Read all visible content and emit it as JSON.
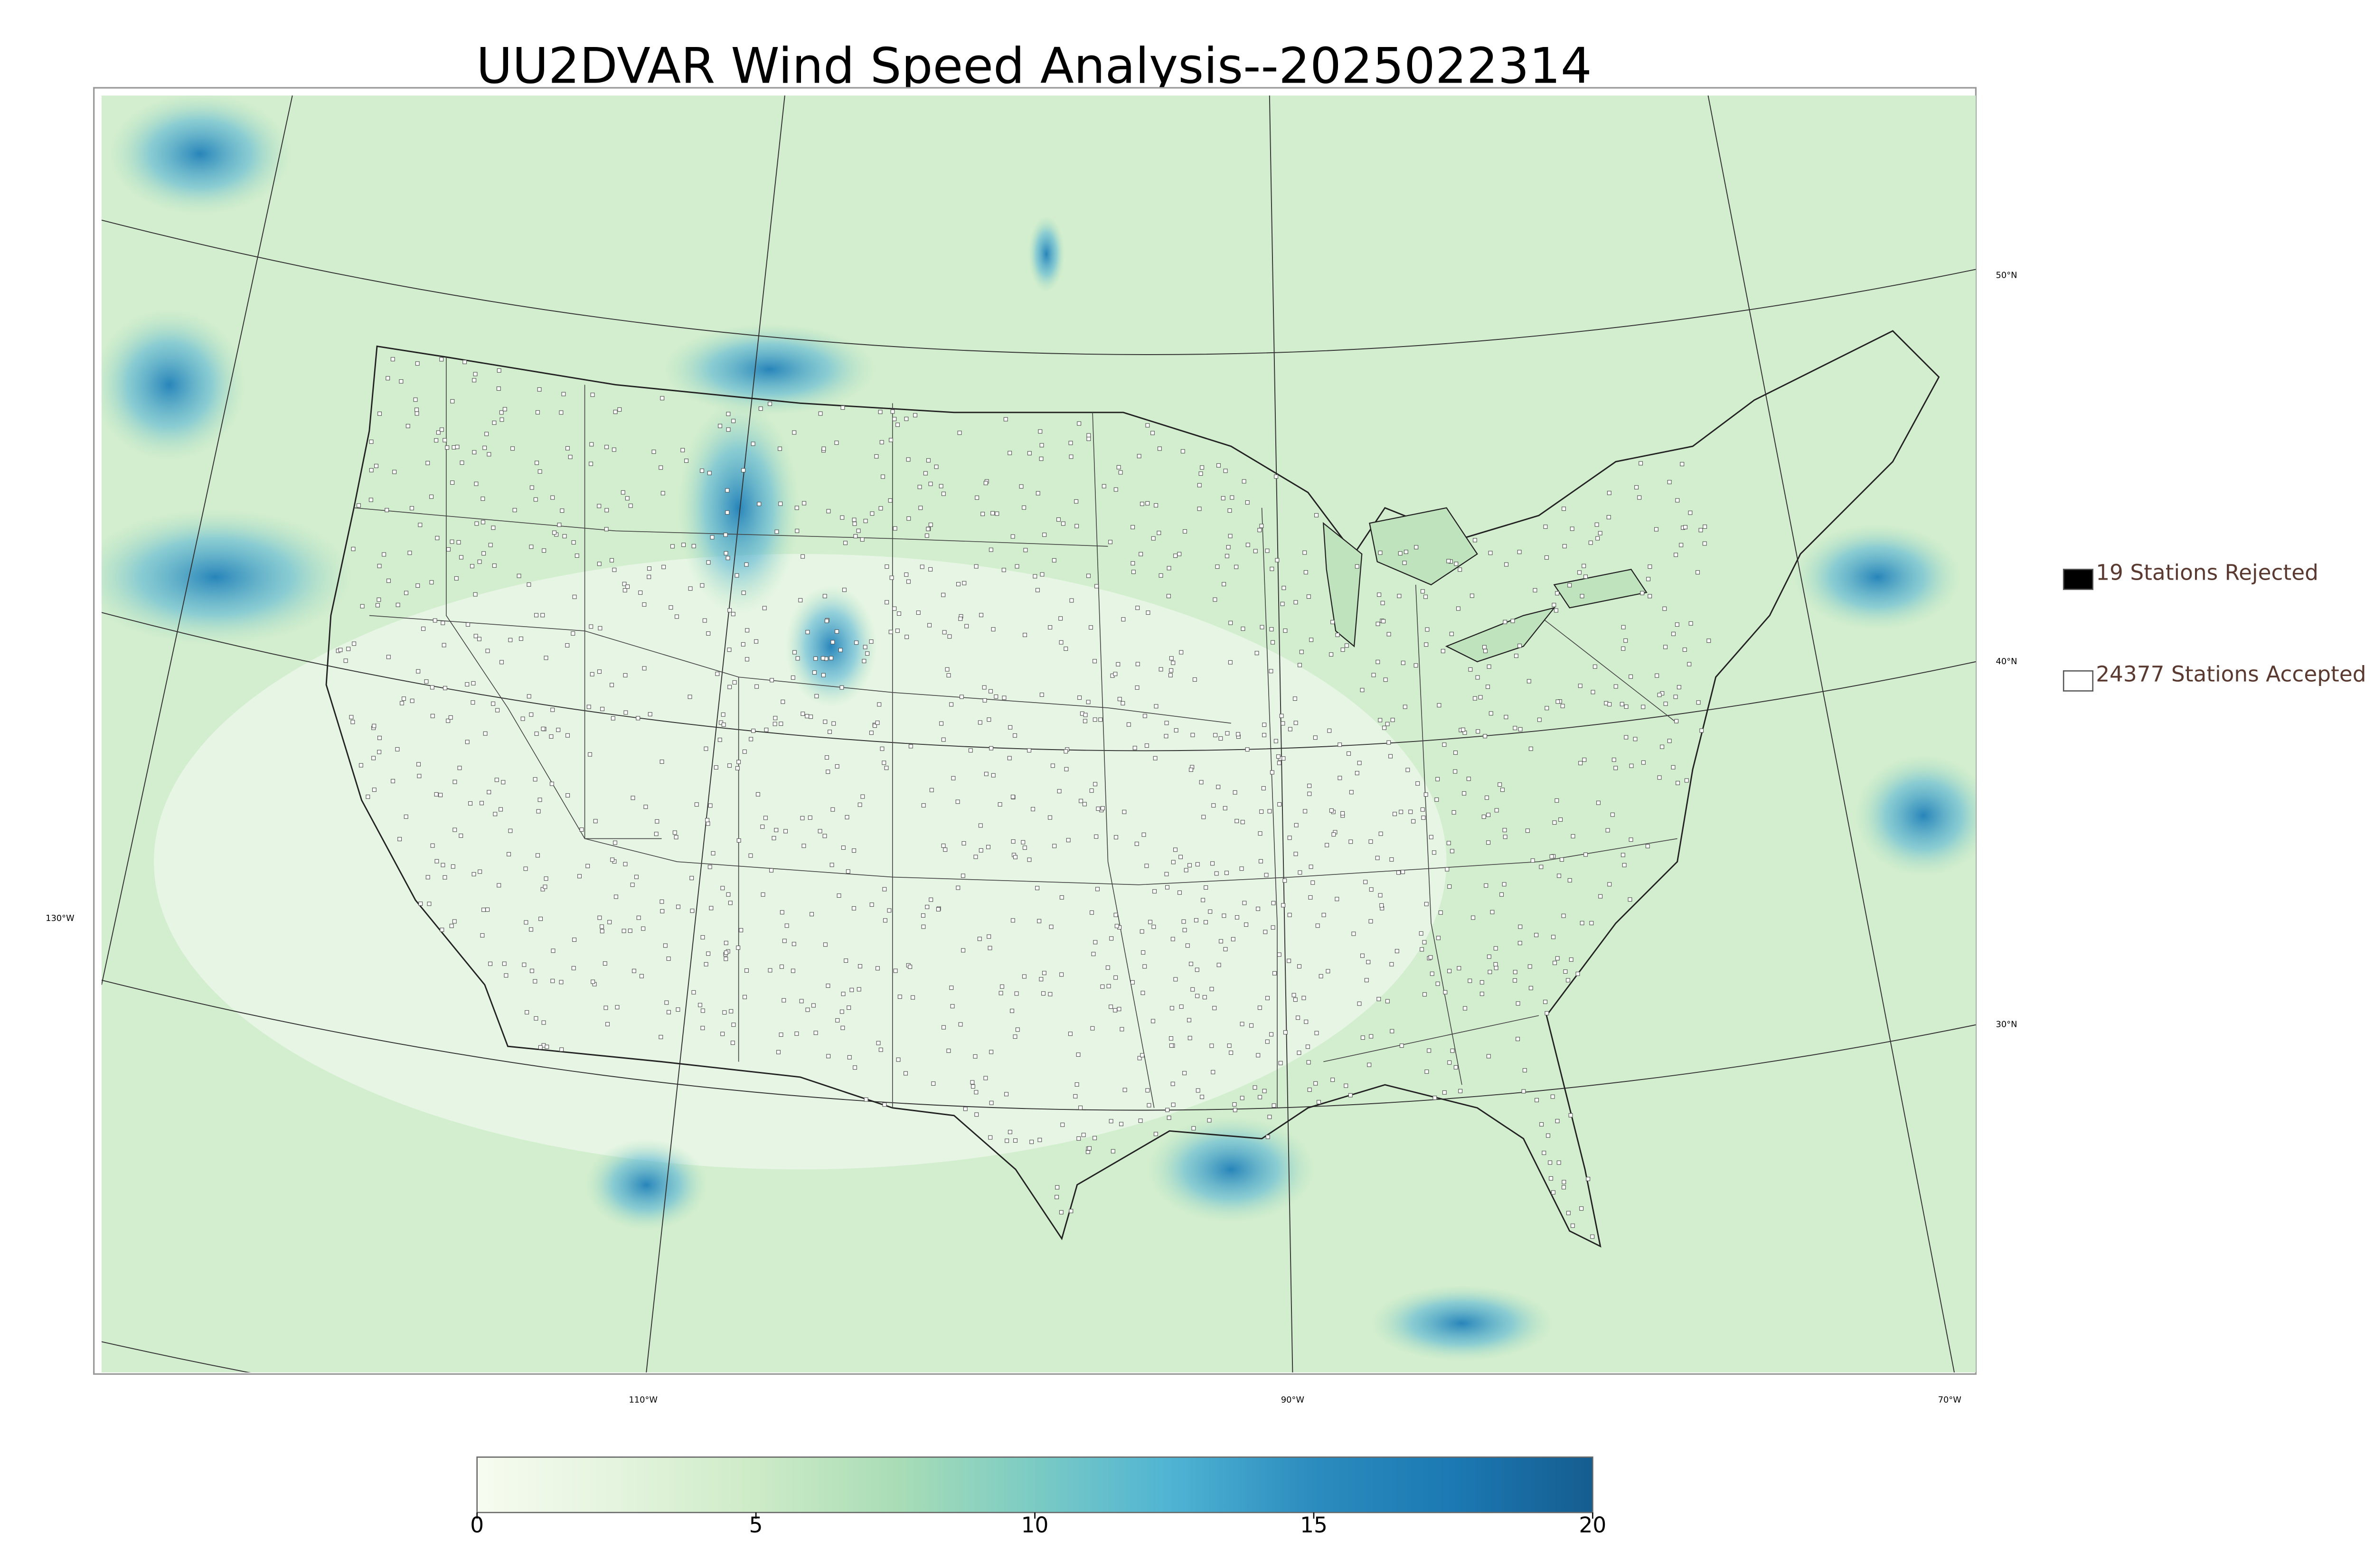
{
  "title": "UU2DVAR Wind Speed Analysis--2025022314",
  "latitude_labels": [
    "50°N",
    "40°N",
    "30°N"
  ],
  "longitude_labels": [
    "130°W",
    "110°W",
    "90°W",
    "70°W"
  ],
  "legend": [
    {
      "label": "19 Stations Rejected",
      "marker_fill": "#000000"
    },
    {
      "label": "24377 Stations Accepted",
      "marker_fill": "#ffffff"
    }
  ],
  "colorbar": {
    "lim": [
      0,
      20
    ],
    "ticks": [
      0,
      5,
      10,
      15,
      20
    ],
    "colors": [
      "#f7fcf0",
      "#e4f4de",
      "#cdebc7",
      "#a9ddb6",
      "#7bcbc4",
      "#4eb3d3",
      "#2b8cbe",
      "#1c79b3",
      "#155d90"
    ]
  }
}
